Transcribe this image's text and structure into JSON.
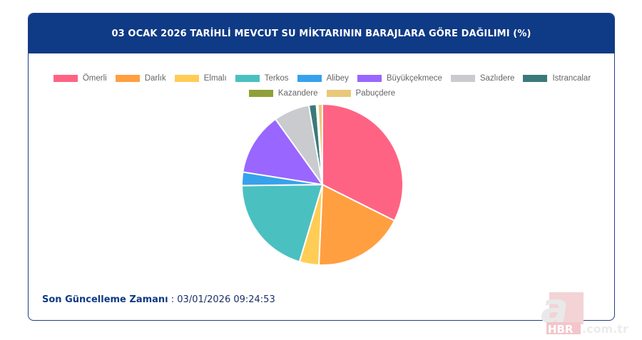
{
  "header": {
    "title": "03 OCAK 2026 TARİHLİ MEVCUT SU MİKTARININ BARAJLARA GÖRE DAĞILIMI (%)"
  },
  "legend": {
    "row1": [
      {
        "label": "Ömerli",
        "color": "#ff6384"
      },
      {
        "label": "Darlık",
        "color": "#ff9f40"
      },
      {
        "label": "Elmalı",
        "color": "#ffcd56"
      },
      {
        "label": "Terkos",
        "color": "#4bc0c0"
      },
      {
        "label": "Alibey",
        "color": "#36a2eb"
      },
      {
        "label": "Büyükçekmece",
        "color": "#9966ff"
      },
      {
        "label": "Sazlıdere",
        "color": "#c9cbcf"
      },
      {
        "label": "Istrancalar",
        "color": "#3a7a7a"
      }
    ],
    "row2": [
      {
        "label": "Kazandere",
        "color": "#8fa03a"
      },
      {
        "label": "Pabuçdere",
        "color": "#e8c97a"
      }
    ]
  },
  "footer": {
    "label": "Son Güncelleme Zamanı",
    "separator": " : ",
    "value": "03/01/2026 09:24:53"
  },
  "watermark": {
    "letter": "a",
    "brand": "HBR",
    "domain": ".com.tr"
  },
  "chart_data": {
    "type": "pie",
    "title": "03 OCAK 2026 TARİHLİ MEVCUT SU MİKTARININ BARAJLARA GÖRE DAĞILIMI (%)",
    "categories": [
      "Ömerli",
      "Darlık",
      "Elmalı",
      "Terkos",
      "Alibey",
      "Büyükçekmece",
      "Sazlıdere",
      "Istrancalar",
      "Kazandere",
      "Pabuçdere"
    ],
    "values": [
      32.4,
      18.3,
      3.9,
      20.2,
      2.7,
      12.6,
      7.2,
      1.5,
      0.3,
      0.9
    ],
    "colors": [
      "#ff6384",
      "#ff9f40",
      "#ffcd56",
      "#4bc0c0",
      "#36a2eb",
      "#9966ff",
      "#c9cbcf",
      "#3a7a7a",
      "#8fa03a",
      "#e8c97a"
    ],
    "legend_position": "top",
    "unit": "%"
  }
}
